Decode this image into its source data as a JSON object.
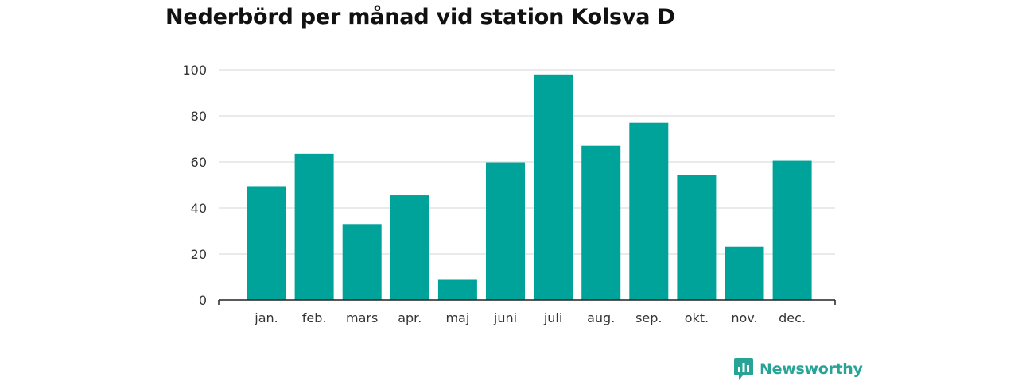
{
  "title": "Nederbörd per månad vid station Kolsva D",
  "brand": {
    "name": "Newsworthy",
    "icon": "newsworthy-logo-icon",
    "color": "#27a496"
  },
  "colors": {
    "bar": "#00a39a",
    "grid": "#d6d6d6",
    "axis": "#222222"
  },
  "chart_data": {
    "type": "bar",
    "title": "Nederbörd per månad vid station Kolsva D",
    "xlabel": "",
    "ylabel": "",
    "categories": [
      "jan.",
      "feb.",
      "mars",
      "apr.",
      "maj",
      "juni",
      "juli",
      "aug.",
      "sep.",
      "okt.",
      "nov.",
      "dec."
    ],
    "values": [
      49.5,
      63.5,
      33,
      45.5,
      8.8,
      59.8,
      98,
      67,
      77,
      54.3,
      23.2,
      60.5
    ],
    "ylim": [
      0,
      100
    ],
    "yticks": [
      "0",
      "20",
      "40",
      "60",
      "80",
      "100"
    ],
    "grid": true,
    "legend": "none"
  }
}
